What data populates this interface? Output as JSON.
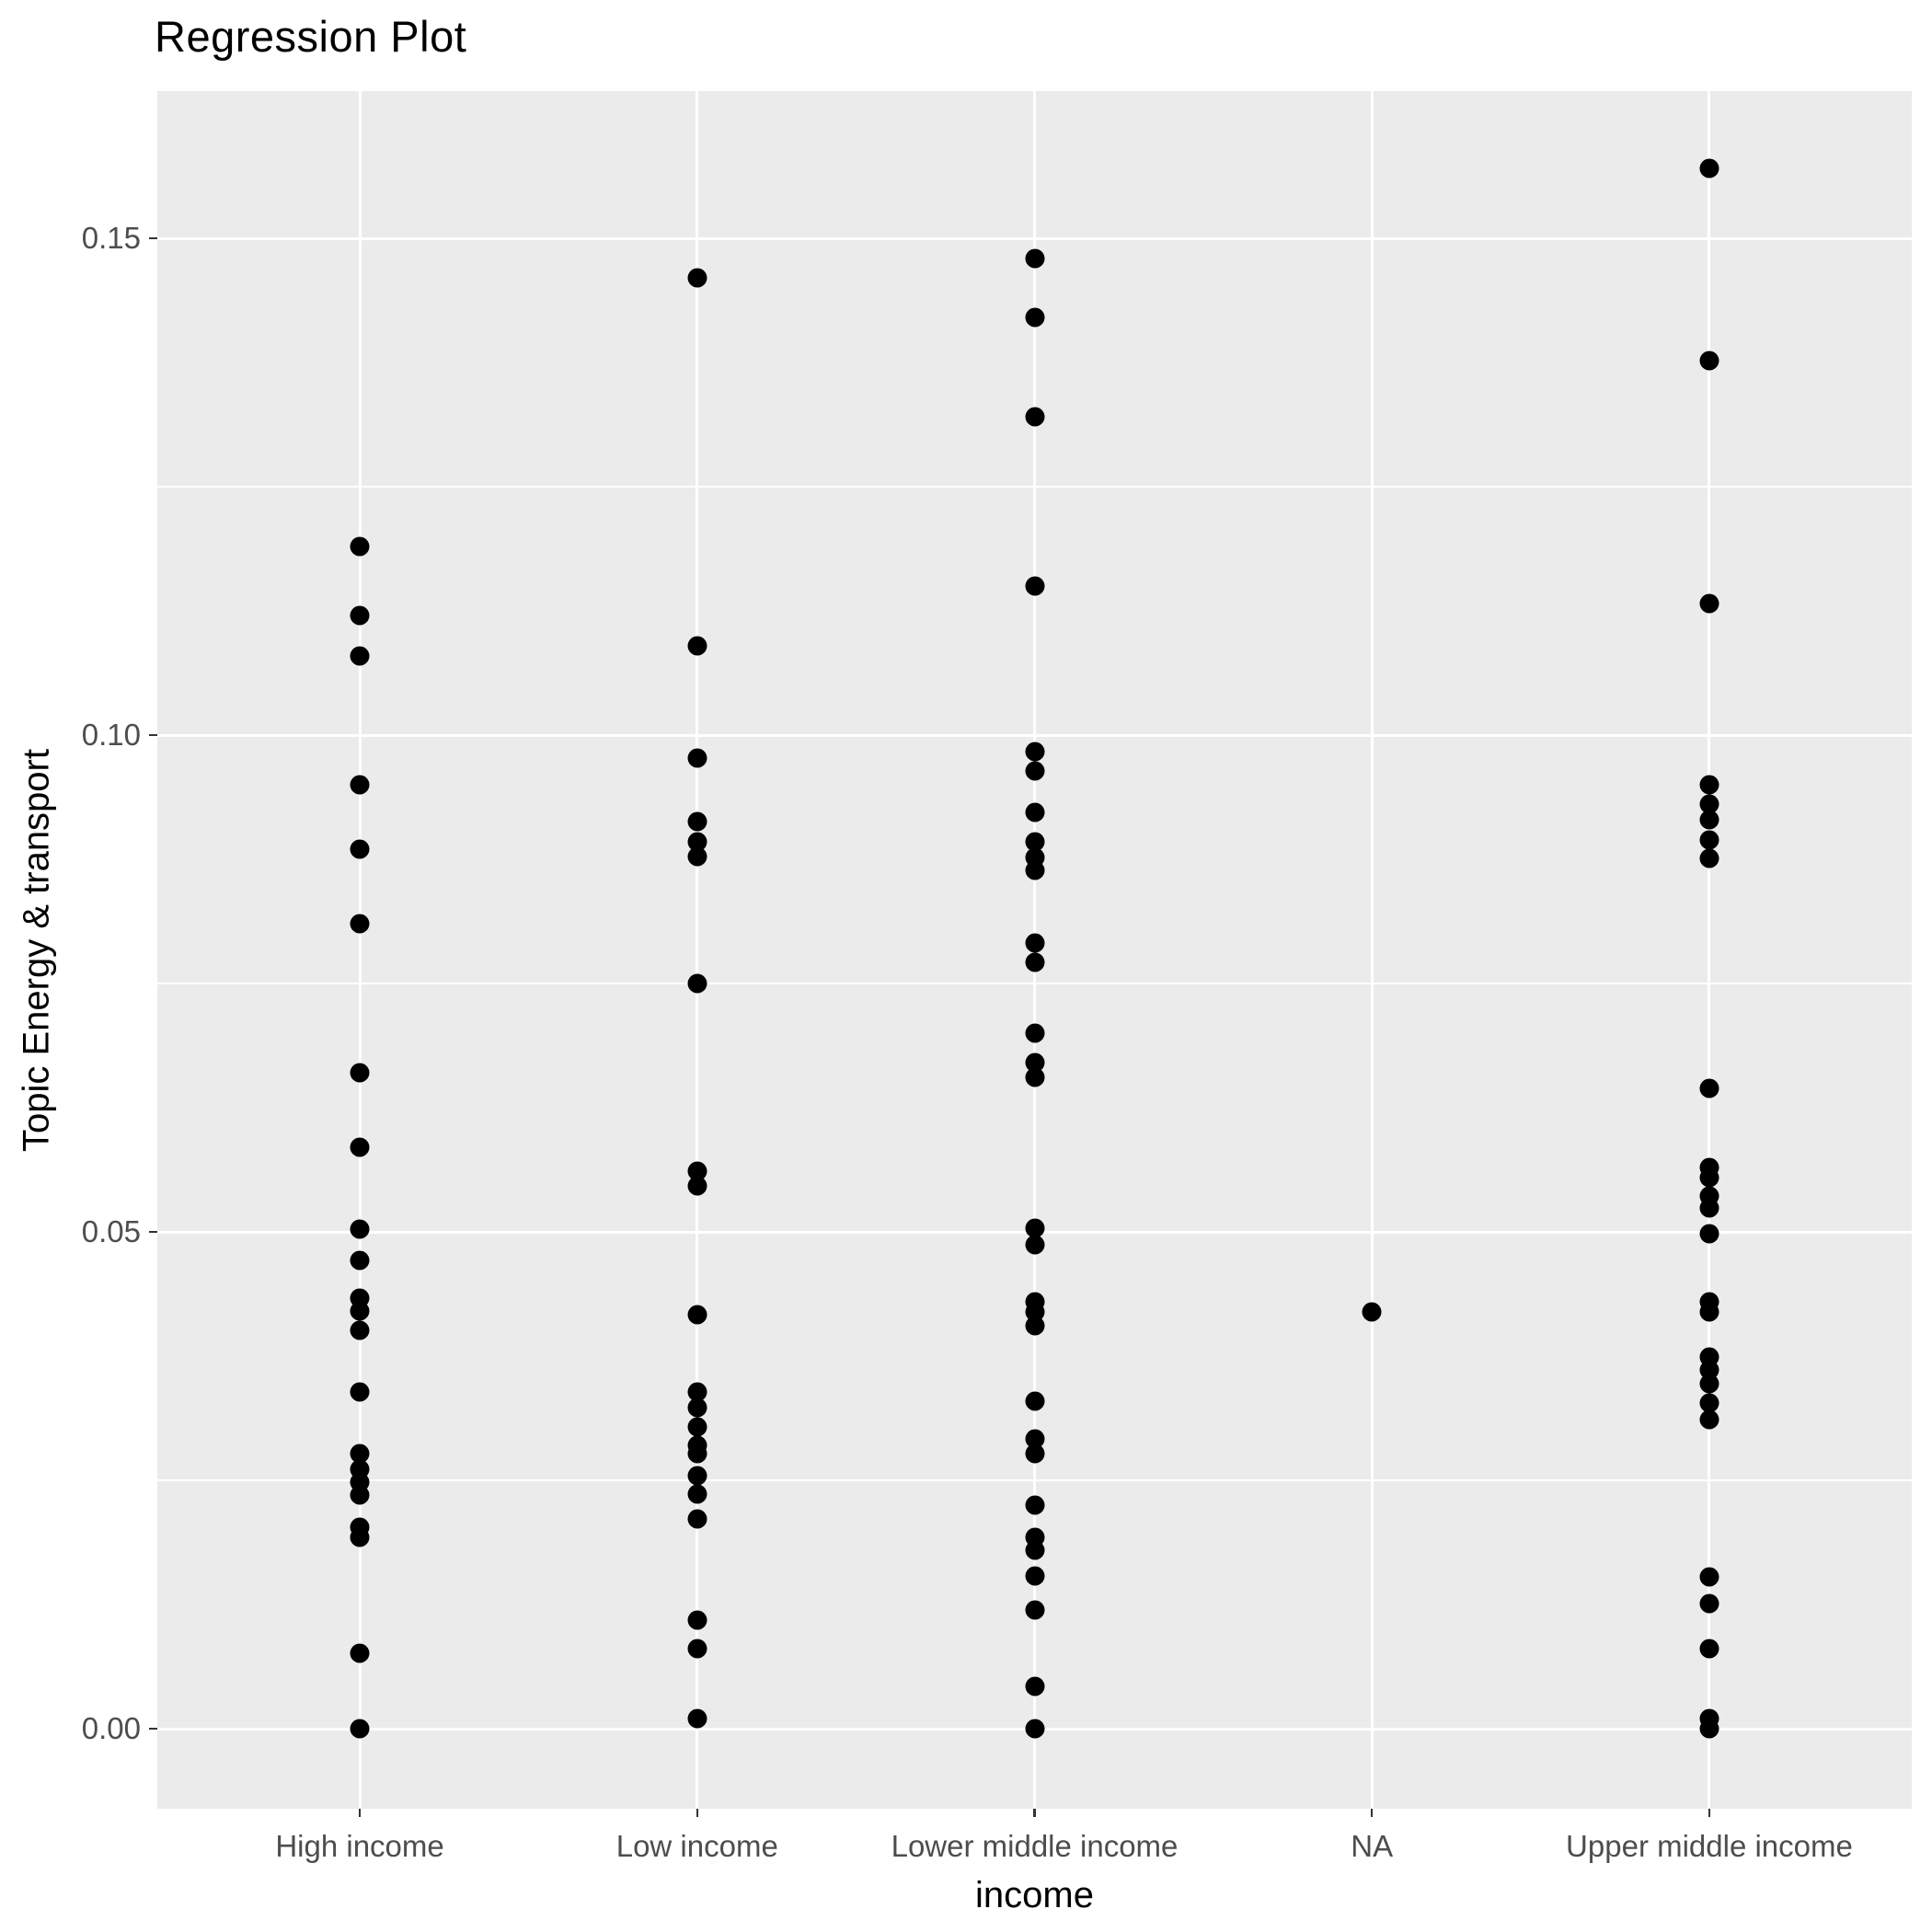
{
  "title": "Regression Plot",
  "chart_data": {
    "type": "scatter",
    "title": "Regression Plot",
    "xlabel": "income",
    "ylabel": "Topic Energy & transport",
    "categories": [
      "High income",
      "Low income",
      "Lower middle income",
      "NA",
      "Upper middle income"
    ],
    "y_ticks": [
      0.0,
      0.05,
      0.1,
      0.15
    ],
    "y_tick_labels": [
      "0.00",
      "0.05",
      "0.10",
      "0.15"
    ],
    "y_minor_ticks": [
      0.025,
      0.075,
      0.125
    ],
    "ylim": [
      -0.008,
      0.165
    ],
    "grid": "on",
    "legend": "none",
    "point_color": "#000000",
    "groups": [
      {
        "category": "High income",
        "values": [
          0.119,
          0.112,
          0.108,
          0.095,
          0.0885,
          0.081,
          0.066,
          0.0585,
          0.0503,
          0.0471,
          0.0433,
          0.042,
          0.0401,
          0.0339,
          0.0277,
          0.0261,
          0.0248,
          0.0235,
          0.0203,
          0.0193,
          0.0076,
          0.0
        ]
      },
      {
        "category": "Low income",
        "values": [
          0.146,
          0.109,
          0.0977,
          0.0913,
          0.0893,
          0.0878,
          0.075,
          0.0561,
          0.0546,
          0.0417,
          0.0339,
          0.0323,
          0.0304,
          0.0285,
          0.0277,
          0.0255,
          0.0236,
          0.0211,
          0.0109,
          0.0081,
          0.001
        ]
      },
      {
        "category": "Lower middle income",
        "values": [
          0.148,
          0.142,
          0.132,
          0.115,
          0.0983,
          0.0964,
          0.0922,
          0.0893,
          0.0877,
          0.0864,
          0.0791,
          0.0771,
          0.07,
          0.067,
          0.0656,
          0.0504,
          0.0487,
          0.043,
          0.0419,
          0.0406,
          0.033,
          0.0292,
          0.0277,
          0.0225,
          0.0193,
          0.018,
          0.0154,
          0.0119,
          0.0043,
          0.0
        ]
      },
      {
        "category": "NA",
        "values": [
          0.0419
        ]
      },
      {
        "category": "Upper middle income",
        "values": [
          0.157,
          0.1377,
          0.1132,
          0.095,
          0.0931,
          0.0915,
          0.0894,
          0.0876,
          0.0644,
          0.0565,
          0.0555,
          0.0536,
          0.0524,
          0.0498,
          0.043,
          0.0419,
          0.0374,
          0.0361,
          0.0347,
          0.0328,
          0.0311,
          0.0153,
          0.0126,
          0.0081,
          0.001,
          0.0
        ]
      }
    ]
  },
  "colors": {
    "panel_background": "#EBEBEB",
    "gridline": "#FFFFFF",
    "tick_text": "#4D4D4D",
    "tick_mark": "#333333",
    "title_text": "#000000",
    "point": "#000000"
  }
}
